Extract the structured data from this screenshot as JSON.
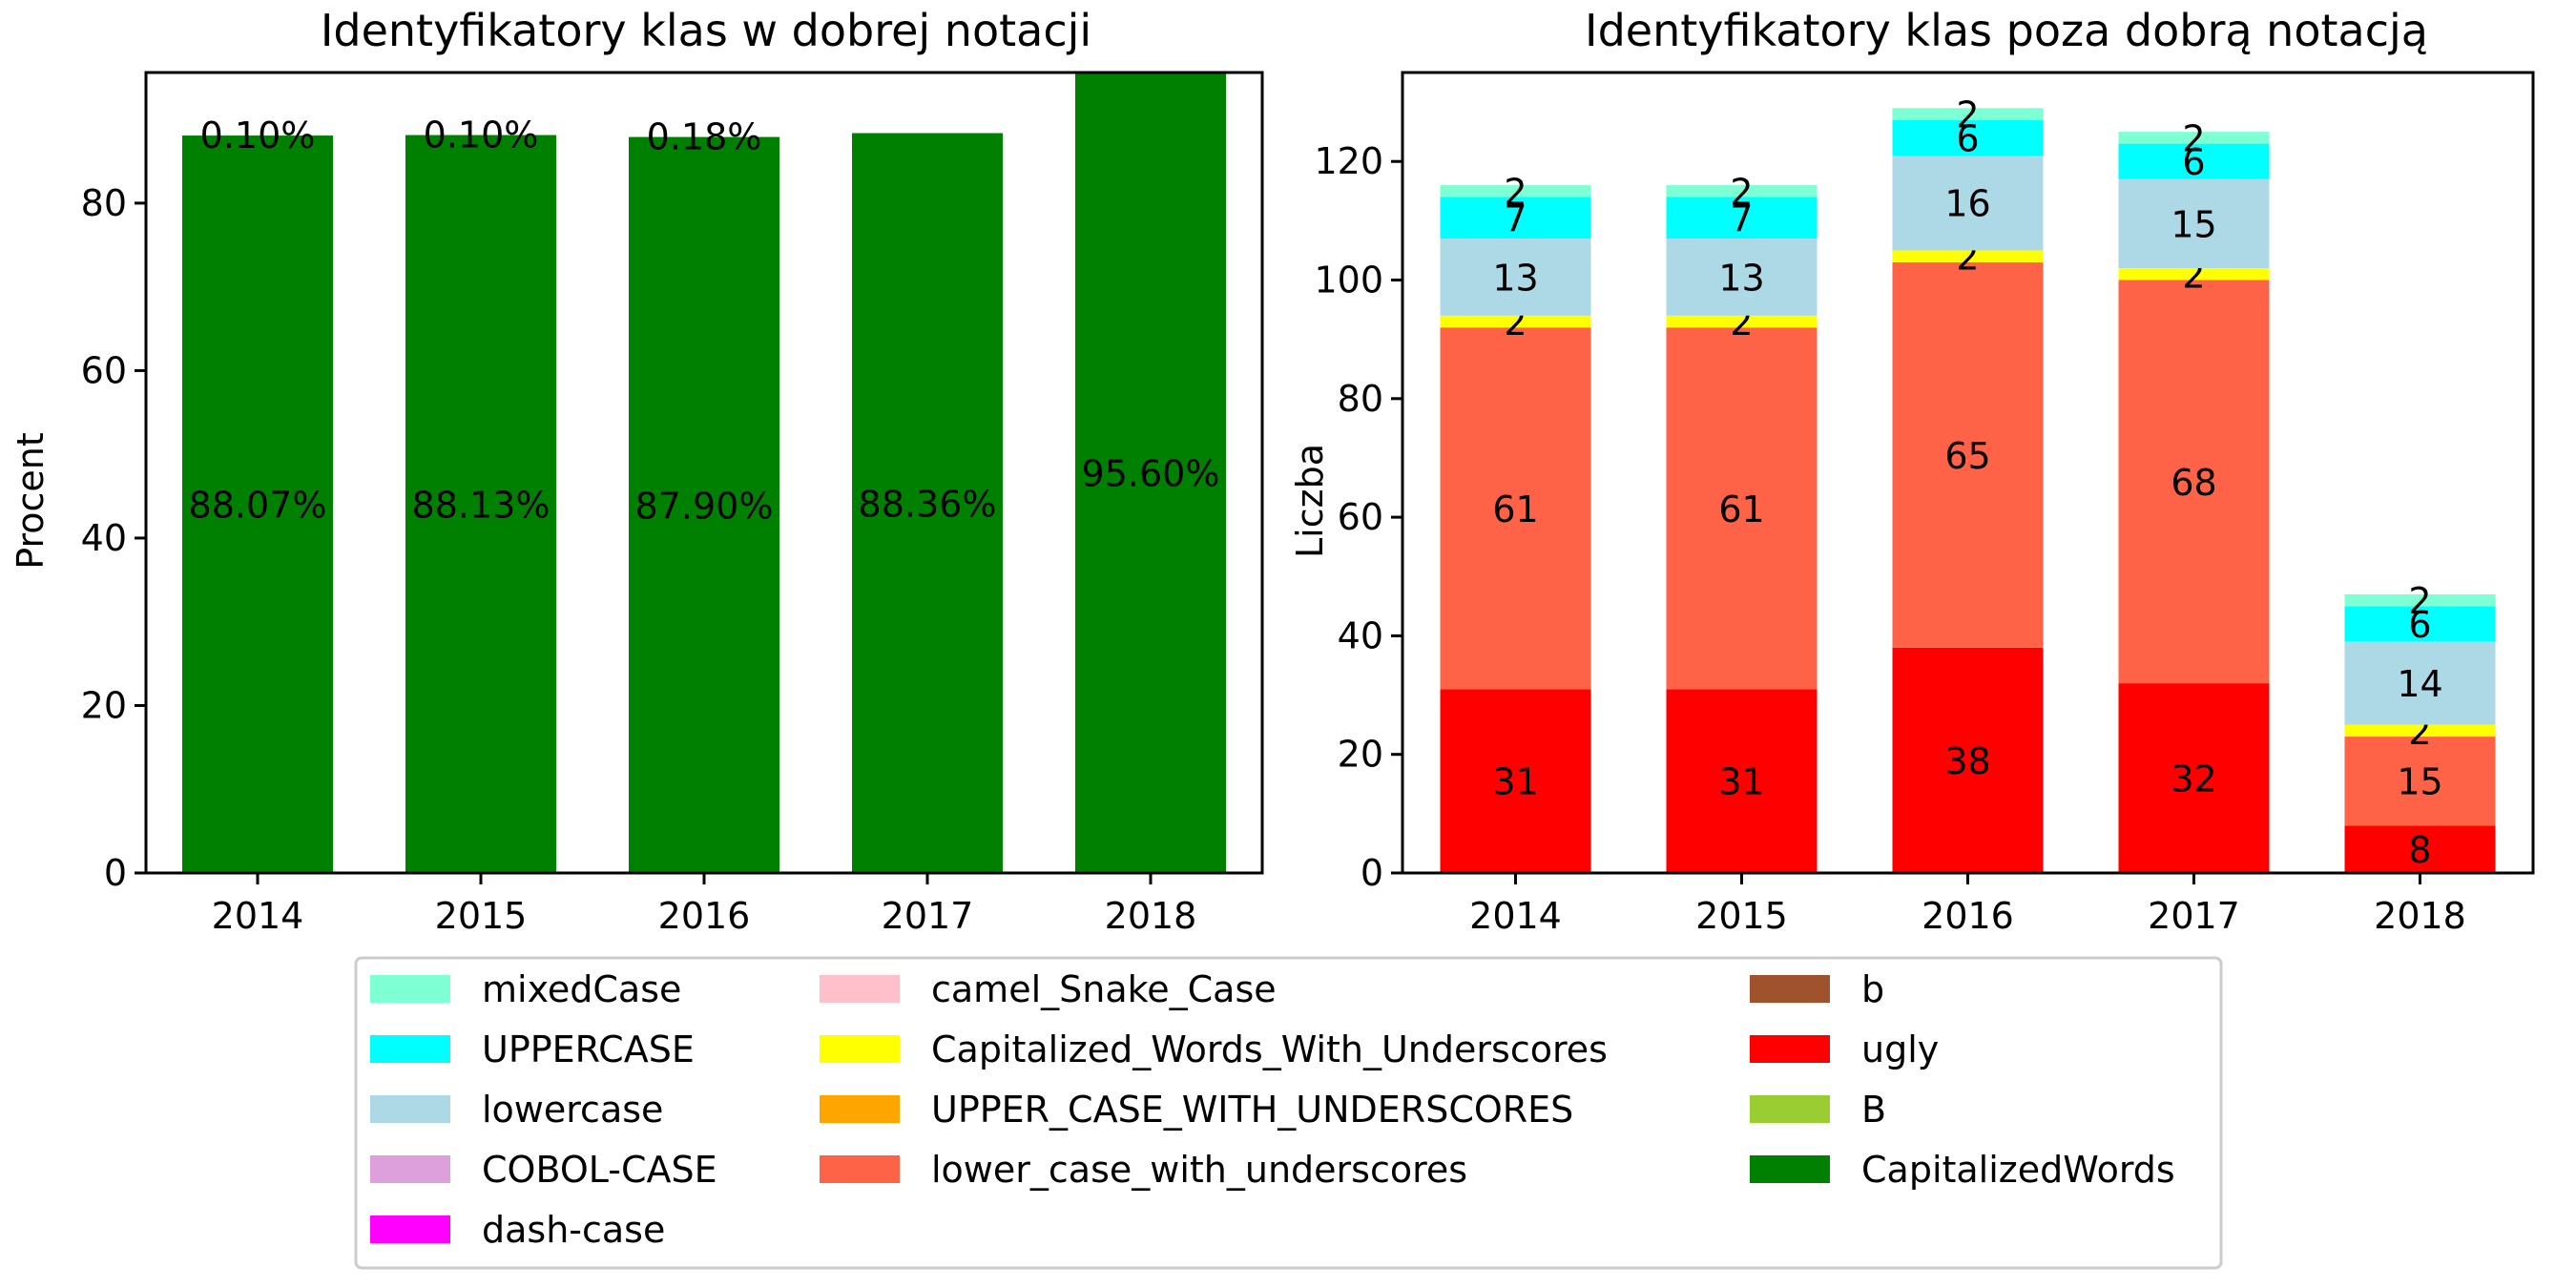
{
  "chart_data": [
    {
      "type": "bar",
      "title": "Identyfikatory klas w dobrej notacji",
      "xlabel": "",
      "ylabel": "Procent",
      "categories": [
        "2014",
        "2015",
        "2016",
        "2017",
        "2018"
      ],
      "ylim": [
        0,
        95.6
      ],
      "yticks": [
        "0",
        "20",
        "40",
        "60",
        "80"
      ],
      "series": [
        {
          "name": "CapitalizedWords",
          "color": "#008000",
          "values": [
            88.07,
            88.13,
            87.9,
            88.36,
            95.6
          ],
          "labels": [
            "88.07%",
            "88.13%",
            "87.90%",
            "88.36%",
            "95.60%"
          ]
        }
      ],
      "top_labels": [
        "0.10%",
        "0.10%",
        "0.18%",
        "",
        ""
      ],
      "grid": false
    },
    {
      "type": "bar",
      "stacked": true,
      "title": "Identyfikatory klas poza dobrą notacją",
      "xlabel": "",
      "ylabel": "Liczba",
      "categories": [
        "2014",
        "2015",
        "2016",
        "2017",
        "2018"
      ],
      "ylim": [
        0,
        135
      ],
      "yticks": [
        "0",
        "20",
        "40",
        "60",
        "80",
        "100",
        "120"
      ],
      "series": [
        {
          "name": "ugly",
          "color": "#ff0000",
          "values": [
            31,
            31,
            38,
            32,
            8
          ]
        },
        {
          "name": "lower_case_with_underscores",
          "color": "#ff6347",
          "values": [
            61,
            61,
            65,
            68,
            15
          ]
        },
        {
          "name": "Capitalized_Words_With_Underscores",
          "color": "#ffff00",
          "values": [
            2,
            2,
            2,
            2,
            2
          ]
        },
        {
          "name": "lowercase",
          "color": "#add8e6",
          "values": [
            13,
            13,
            16,
            15,
            14
          ]
        },
        {
          "name": "UPPERCASE",
          "color": "#00ffff",
          "values": [
            7,
            7,
            6,
            6,
            6
          ]
        },
        {
          "name": "mixedCase",
          "color": "#7fffd4",
          "values": [
            2,
            2,
            2,
            2,
            2
          ]
        }
      ],
      "grid": false
    }
  ],
  "legend": {
    "placement": "bottom-center",
    "items": [
      {
        "name": "mixedCase",
        "color": "#7fffd4"
      },
      {
        "name": "UPPERCASE",
        "color": "#00ffff"
      },
      {
        "name": "lowercase",
        "color": "#add8e6"
      },
      {
        "name": "COBOL-CASE",
        "color": "#dda0dd"
      },
      {
        "name": "dash-case",
        "color": "#ff00ff"
      },
      {
        "name": "camel_Snake_Case",
        "color": "#ffc0cb"
      },
      {
        "name": "Capitalized_Words_With_Underscores",
        "color": "#ffff00"
      },
      {
        "name": "UPPER_CASE_WITH_UNDERSCORES",
        "color": "#ffa500"
      },
      {
        "name": "lower_case_with_underscores",
        "color": "#ff6347"
      },
      {
        "name": "b",
        "color": "#a0522d"
      },
      {
        "name": "ugly",
        "color": "#ff0000"
      },
      {
        "name": "B",
        "color": "#9acd32"
      },
      {
        "name": "CapitalizedWords",
        "color": "#008000"
      }
    ]
  }
}
